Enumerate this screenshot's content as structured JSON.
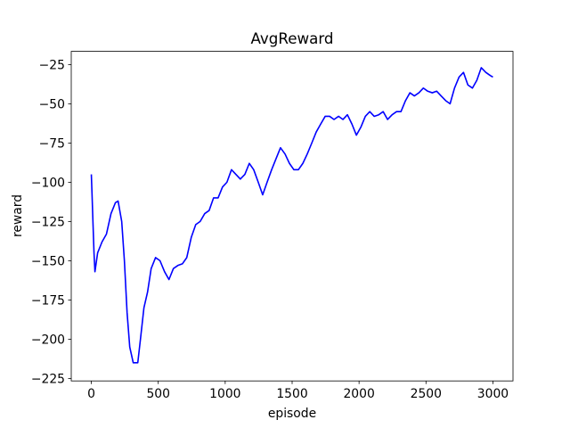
{
  "chart_data": {
    "type": "line",
    "title": "AvgReward",
    "x_label": "episode",
    "y_label": "reward",
    "x": [
      0,
      5,
      12,
      20,
      27,
      47,
      80,
      113,
      147,
      180,
      200,
      227,
      247,
      267,
      287,
      313,
      347,
      367,
      393,
      420,
      447,
      480,
      513,
      547,
      580,
      613,
      647,
      680,
      713,
      747,
      780,
      813,
      847,
      880,
      913,
      947,
      980,
      1013,
      1047,
      1080,
      1113,
      1147,
      1180,
      1213,
      1247,
      1280,
      1313,
      1347,
      1380,
      1413,
      1447,
      1480,
      1513,
      1547,
      1580,
      1613,
      1647,
      1680,
      1713,
      1747,
      1780,
      1813,
      1847,
      1880,
      1913,
      1947,
      1980,
      2013,
      2047,
      2080,
      2113,
      2147,
      2180,
      2213,
      2247,
      2280,
      2313,
      2347,
      2380,
      2413,
      2447,
      2480,
      2513,
      2547,
      2580,
      2613,
      2647,
      2680,
      2713,
      2747,
      2780,
      2813,
      2847,
      2880,
      2913,
      2947,
      2980,
      3000
    ],
    "series": [
      {
        "name": "AvgReward",
        "color": "#0000ff",
        "values": [
          -95,
          -107,
          -125,
          -145,
          -157,
          -145,
          -138,
          -133,
          -120,
          -113,
          -112,
          -125,
          -150,
          -183,
          -205,
          -215,
          -215,
          -200,
          -180,
          -170,
          -155,
          -148,
          -150,
          -157,
          -162,
          -155,
          -153,
          -152,
          -148,
          -135,
          -127,
          -125,
          -120,
          -118,
          -110,
          -110,
          -103,
          -100,
          -92,
          -95,
          -98,
          -95,
          -88,
          -92,
          -100,
          -108,
          -100,
          -92,
          -85,
          -78,
          -82,
          -88,
          -92,
          -92,
          -88,
          -82,
          -75,
          -68,
          -63,
          -58,
          -58,
          -60,
          -58,
          -60,
          -57,
          -63,
          -70,
          -65,
          -58,
          -55,
          -58,
          -57,
          -55,
          -60,
          -57,
          -55,
          -55,
          -48,
          -43,
          -45,
          -43,
          -40,
          -42,
          -43,
          -42,
          -45,
          -48,
          -50,
          -40,
          -33,
          -30,
          -38,
          -40,
          -35,
          -27,
          -30,
          -32,
          -33
        ]
      }
    ],
    "xlim": [
      -150,
      3150
    ],
    "ylim": [
      -226.6,
      -16.6
    ],
    "xticks": [
      0,
      500,
      1000,
      1500,
      2000,
      2500,
      3000
    ],
    "yticks": [
      {
        "value": -225,
        "label": "−225"
      },
      {
        "value": -200,
        "label": "−200"
      },
      {
        "value": -175,
        "label": "−175"
      },
      {
        "value": -150,
        "label": "−150"
      },
      {
        "value": -125,
        "label": "−125"
      },
      {
        "value": -100,
        "label": "−100"
      },
      {
        "value": -75,
        "label": "−75"
      },
      {
        "value": -50,
        "label": "−50"
      },
      {
        "value": -25,
        "label": "−25"
      }
    ],
    "grid": false
  }
}
